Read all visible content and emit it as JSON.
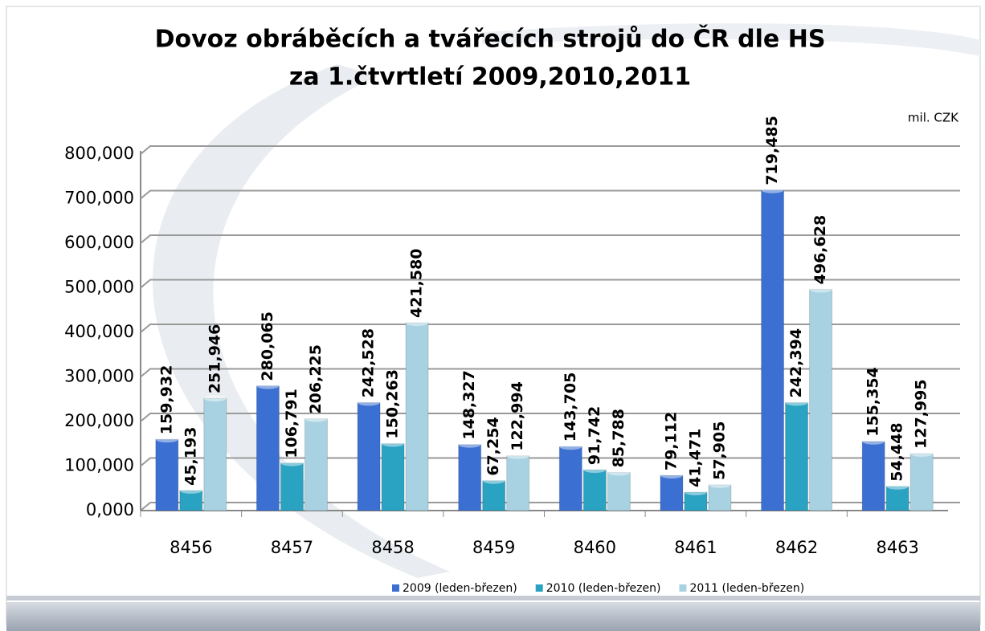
{
  "chart_data": {
    "type": "bar",
    "title": [
      "Dovoz obráběcích a tvářecích strojů do ČR dle HS",
      "za 1.čtvrtletí 2009,2010,2011"
    ],
    "unit_label": "mil. CZK",
    "categories": [
      "8456",
      "8457",
      "8458",
      "8459",
      "8460",
      "8461",
      "8462",
      "8463"
    ],
    "series": [
      {
        "name": "2009 (leden-březen)",
        "color": "#3b6fd1",
        "values": [
          159.932,
          280.065,
          242.528,
          148.327,
          143.705,
          79.112,
          719.485,
          155.354
        ],
        "value_labels": [
          "159,932",
          "280,065",
          "242,528",
          "148,327",
          "143,705",
          "79,112",
          "719,485",
          "155,354"
        ]
      },
      {
        "name": "2010 (leden-březen)",
        "color": "#2aa2c2",
        "values": [
          45.193,
          106.791,
          150.263,
          67.254,
          91.742,
          41.471,
          242.394,
          54.448
        ],
        "value_labels": [
          "45,193",
          "106,791",
          "150,263",
          "67,254",
          "91,742",
          "41,471",
          "242,394",
          "54,448"
        ]
      },
      {
        "name": "2011 (leden-březen)",
        "color": "#a8d2e2",
        "values": [
          251.946,
          206.225,
          421.58,
          122.994,
          85.788,
          57.905,
          496.628,
          127.995
        ],
        "value_labels": [
          "251,946",
          "206,225",
          "421,580",
          "122,994",
          "85,788",
          "57,905",
          "496,628",
          "127,995"
        ]
      }
    ],
    "ylim": [
      0,
      800
    ],
    "yticks": [
      {
        "value": 0,
        "label": "0,000"
      },
      {
        "value": 100,
        "label": "100,000"
      },
      {
        "value": 200,
        "label": "200,000"
      },
      {
        "value": 300,
        "label": "300,000"
      },
      {
        "value": 400,
        "label": "400,000"
      },
      {
        "value": 500,
        "label": "500,000"
      },
      {
        "value": 600,
        "label": "600,000"
      },
      {
        "value": 700,
        "label": "700,000"
      },
      {
        "value": 800,
        "label": "800,000"
      }
    ],
    "grid": true
  }
}
